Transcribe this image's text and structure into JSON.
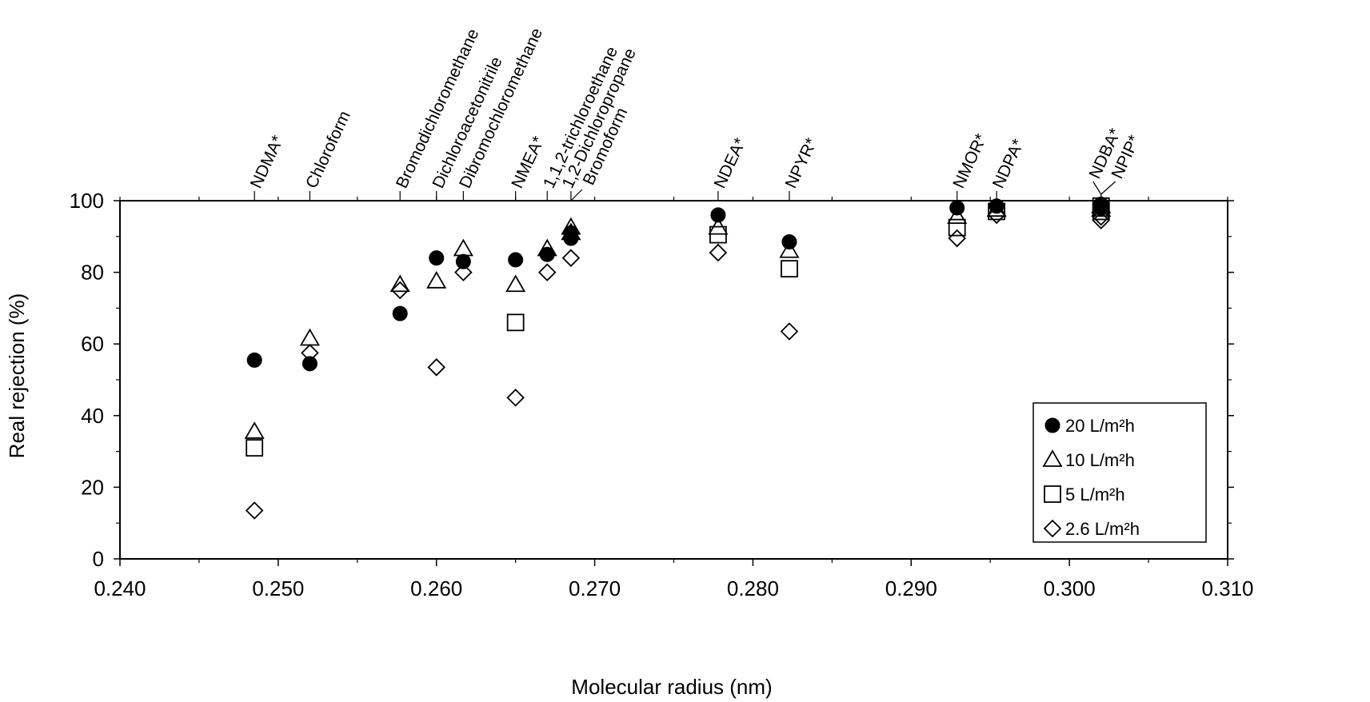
{
  "chart_data": {
    "type": "scatter",
    "xlabel": "Molecular radius (nm)",
    "ylabel": "Real rejection (%)",
    "xlim": [
      0.24,
      0.31
    ],
    "ylim": [
      0,
      100
    ],
    "x_ticks": [
      0.24,
      0.25,
      0.26,
      0.27,
      0.28,
      0.29,
      0.3,
      0.31
    ],
    "x_tick_labels": [
      "0.240",
      "0.250",
      "0.260",
      "0.270",
      "0.280",
      "0.290",
      "0.300",
      "0.310"
    ],
    "y_ticks": [
      0,
      20,
      40,
      60,
      80,
      100
    ],
    "y_tick_labels": [
      "0",
      "20",
      "40",
      "60",
      "80",
      "100"
    ],
    "grid": false,
    "legend_position": "bottom-right",
    "compounds": [
      {
        "label": "NDMA*",
        "x": 0.2485
      },
      {
        "label": "Chloroform",
        "x": 0.252
      },
      {
        "label": "Bromodichloromethane",
        "x": 0.2577
      },
      {
        "label": "Dichloroacetonitrile",
        "x": 0.26
      },
      {
        "label": "Dibromochloromethane",
        "x": 0.2617
      },
      {
        "label": "NMEA*",
        "x": 0.265
      },
      {
        "label": "1,1,2-trichloroethane",
        "x": 0.267
      },
      {
        "label": "1,2-Dichloropropane",
        "x": 0.2685
      },
      {
        "label": "Bromoform",
        "x": 0.2685
      },
      {
        "label": "NDEA*",
        "x": 0.2778
      },
      {
        "label": "NPYR*",
        "x": 0.2823
      },
      {
        "label": "NMOR*",
        "x": 0.2929
      },
      {
        "label": "NDPA*",
        "x": 0.2954
      },
      {
        "label": "NDBA*",
        "x": 0.302
      },
      {
        "label": "NPIP*",
        "x": 0.302
      }
    ],
    "series": [
      {
        "name": "20 L/m²h",
        "marker": "filled-circle",
        "points": [
          {
            "x": 0.2485,
            "y": 55.5
          },
          {
            "x": 0.252,
            "y": 54.5
          },
          {
            "x": 0.2577,
            "y": 68.5
          },
          {
            "x": 0.26,
            "y": 84
          },
          {
            "x": 0.2617,
            "y": 83
          },
          {
            "x": 0.265,
            "y": 83.5
          },
          {
            "x": 0.267,
            "y": 85
          },
          {
            "x": 0.2685,
            "y": 91
          },
          {
            "x": 0.2685,
            "y": 89.5
          },
          {
            "x": 0.2778,
            "y": 96
          },
          {
            "x": 0.2823,
            "y": 88.5
          },
          {
            "x": 0.2929,
            "y": 98
          },
          {
            "x": 0.2954,
            "y": 98.5
          },
          {
            "x": 0.302,
            "y": 99
          },
          {
            "x": 0.302,
            "y": 98
          }
        ]
      },
      {
        "name": "10 L/m²h",
        "marker": "open-triangle",
        "points": [
          {
            "x": 0.2485,
            "y": 35.5
          },
          {
            "x": 0.252,
            "y": 61.5
          },
          {
            "x": 0.2577,
            "y": 76.5
          },
          {
            "x": 0.26,
            "y": 77.5
          },
          {
            "x": 0.2617,
            "y": 86.5
          },
          {
            "x": 0.265,
            "y": 76.5
          },
          {
            "x": 0.267,
            "y": 86.5
          },
          {
            "x": 0.2685,
            "y": 92.5
          },
          {
            "x": 0.2685,
            "y": 91
          },
          {
            "x": 0.2778,
            "y": 92.5
          },
          {
            "x": 0.2823,
            "y": 86
          },
          {
            "x": 0.2929,
            "y": 95.5
          },
          {
            "x": 0.2954,
            "y": 97.5
          },
          {
            "x": 0.302,
            "y": 98.5
          },
          {
            "x": 0.302,
            "y": 97.5
          }
        ]
      },
      {
        "name": "5 L/m²h",
        "marker": "open-square",
        "points": [
          {
            "x": 0.2485,
            "y": 31
          },
          {
            "x": 0.265,
            "y": 66
          },
          {
            "x": 0.2778,
            "y": 90.5
          },
          {
            "x": 0.2823,
            "y": 81
          },
          {
            "x": 0.2929,
            "y": 92.5
          },
          {
            "x": 0.2954,
            "y": 97
          },
          {
            "x": 0.302,
            "y": 98.5
          },
          {
            "x": 0.302,
            "y": 97
          }
        ]
      },
      {
        "name": "2.6 L/m²h",
        "marker": "open-diamond",
        "points": [
          {
            "x": 0.2485,
            "y": 13.5
          },
          {
            "x": 0.252,
            "y": 57.5
          },
          {
            "x": 0.2577,
            "y": 75
          },
          {
            "x": 0.26,
            "y": 53.5
          },
          {
            "x": 0.2617,
            "y": 80
          },
          {
            "x": 0.265,
            "y": 45
          },
          {
            "x": 0.267,
            "y": 80
          },
          {
            "x": 0.2685,
            "y": 84
          },
          {
            "x": 0.2778,
            "y": 85.5
          },
          {
            "x": 0.2823,
            "y": 63.5
          },
          {
            "x": 0.2929,
            "y": 89.5
          },
          {
            "x": 0.2954,
            "y": 96
          },
          {
            "x": 0.302,
            "y": 95.5
          },
          {
            "x": 0.302,
            "y": 94.5
          }
        ]
      }
    ]
  }
}
